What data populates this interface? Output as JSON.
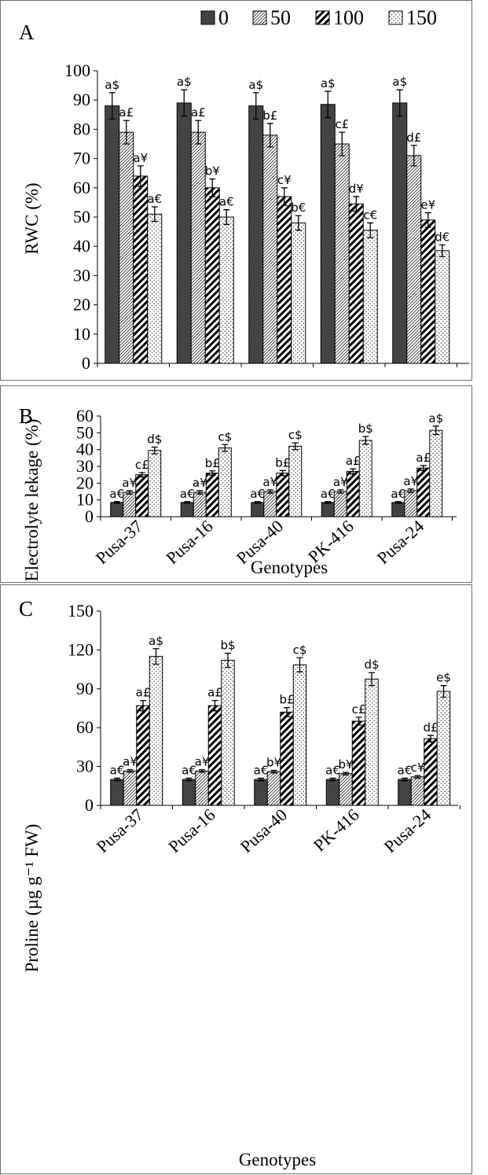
{
  "legend": {
    "entries": [
      "0",
      "50",
      "100",
      "150"
    ]
  },
  "chart_data": [
    {
      "type": "bar",
      "panel": "A",
      "title": "",
      "xlabel": "",
      "ylabel": "RWC (%)",
      "ylim": [
        0,
        100
      ],
      "yticks": [
        0,
        10,
        20,
        30,
        40,
        50,
        60,
        70,
        80,
        90,
        100
      ],
      "categories": [
        "Pusa-37",
        "Pusa-16",
        "Pusa-40",
        "PK-416",
        "Pusa-24"
      ],
      "show_category_labels": false,
      "series": [
        {
          "name": "0",
          "values": [
            88,
            89,
            88,
            88.5,
            89
          ],
          "errors": [
            4.5,
            4.5,
            4.5,
            4.5,
            4.5
          ],
          "labels": [
            "a$",
            "a$",
            "a$",
            "a$",
            "a$"
          ]
        },
        {
          "name": "50",
          "values": [
            79,
            79,
            78,
            75,
            71
          ],
          "errors": [
            4,
            4,
            4,
            4,
            3.5
          ],
          "labels": [
            "a£",
            "a£",
            "b£",
            "c£",
            "d£"
          ]
        },
        {
          "name": "100",
          "values": [
            64,
            60,
            57,
            54.5,
            49
          ],
          "errors": [
            3.5,
            3,
            3,
            2.5,
            2.5
          ],
          "labels": [
            "a¥",
            "b¥",
            "c¥",
            "d¥",
            "e¥"
          ]
        },
        {
          "name": "150",
          "values": [
            51,
            50,
            48,
            45.5,
            38.5
          ],
          "errors": [
            2.5,
            2.5,
            2.5,
            2.5,
            2
          ],
          "labels": [
            "a€",
            "a€",
            "b€",
            "c€",
            "d€"
          ]
        }
      ]
    },
    {
      "type": "bar",
      "panel": "B",
      "title": "",
      "xlabel": "Genotypes",
      "ylabel": "Electrolyte lekage (%)",
      "ylim": [
        0,
        60
      ],
      "yticks": [
        0,
        10,
        20,
        30,
        40,
        50,
        60
      ],
      "categories": [
        "Pusa-37",
        "Pusa-16",
        "Pusa-40",
        "PK-416",
        "Pusa-24"
      ],
      "show_category_labels": true,
      "series": [
        {
          "name": "0",
          "values": [
            8.5,
            8.5,
            8.5,
            8.5,
            8.5
          ],
          "errors": [
            0.5,
            0.5,
            0.5,
            0.5,
            0.5
          ],
          "labels": [
            "a€",
            "a€",
            "a€",
            "a€",
            "a€"
          ]
        },
        {
          "name": "50",
          "values": [
            14.5,
            14.5,
            15,
            15,
            15.5
          ],
          "errors": [
            1,
            1,
            1,
            1,
            1
          ],
          "labels": [
            "a¥",
            "a¥",
            "a¥",
            "a¥",
            "a¥"
          ]
        },
        {
          "name": "100",
          "values": [
            25,
            26,
            26,
            27,
            29
          ],
          "errors": [
            1.3,
            1.3,
            1.5,
            1.5,
            1.5
          ],
          "labels": [
            "c£",
            "b£",
            "b£",
            "a£",
            "a£"
          ]
        },
        {
          "name": "150",
          "values": [
            39.5,
            41,
            42,
            45.5,
            51.5
          ],
          "errors": [
            2,
            2,
            2,
            2.3,
            2.5
          ],
          "labels": [
            "d$",
            "c$",
            "c$",
            "b$",
            "a$"
          ]
        }
      ]
    },
    {
      "type": "bar",
      "panel": "C",
      "title": "",
      "xlabel": "Genotypes",
      "ylabel": "Proline (µg g⁻¹ FW)",
      "ylim": [
        0,
        150
      ],
      "yticks": [
        0,
        30,
        60,
        90,
        120,
        150
      ],
      "categories": [
        "Pusa-37",
        "Pusa-16",
        "Pusa-40",
        "PK-416",
        "Pusa-24"
      ],
      "show_category_labels": true,
      "series": [
        {
          "name": "0",
          "values": [
            20,
            20,
            20,
            20,
            20
          ],
          "errors": [
            1,
            1,
            1,
            1,
            1
          ],
          "labels": [
            "a€",
            "a€",
            "a€",
            "a€",
            "a€"
          ]
        },
        {
          "name": "50",
          "values": [
            26.5,
            26.5,
            26,
            24.5,
            22
          ],
          "errors": [
            1,
            1,
            1,
            1,
            1
          ],
          "labels": [
            "a¥",
            "a¥",
            "b¥",
            "b¥",
            "c¥"
          ]
        },
        {
          "name": "100",
          "values": [
            77,
            77,
            72,
            65,
            51.5
          ],
          "errors": [
            4,
            4,
            3.5,
            3,
            2.5
          ],
          "labels": [
            "a£",
            "a£",
            "b£",
            "c£",
            "d£"
          ]
        },
        {
          "name": "150",
          "values": [
            115,
            112,
            108.5,
            97.5,
            88
          ],
          "errors": [
            6,
            5.5,
            5.5,
            5,
            4.5
          ],
          "labels": [
            "a$",
            "b$",
            "c$",
            "d$",
            "e$"
          ]
        }
      ]
    }
  ]
}
